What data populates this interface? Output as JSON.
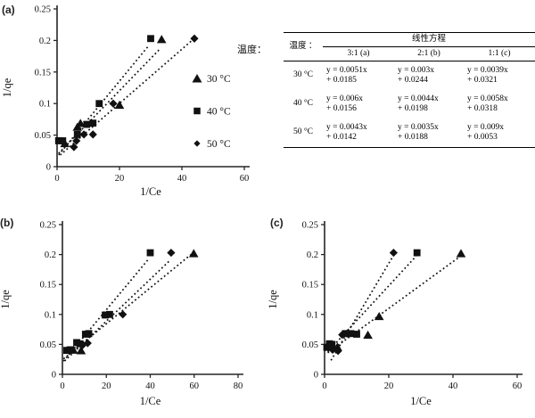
{
  "caption": {
    "label": "温度："
  },
  "table": {
    "row_header": "温度 ：",
    "span_header": "线性方程",
    "col_headers": [
      "3:1 (a)",
      "2:1 (b)",
      "1:1 (c)"
    ],
    "rows": [
      {
        "temp": "30 °C",
        "eq_a": "y = 0.0051x\n+ 0.0185",
        "eq_b": "y = 0.003x\n+ 0.0244",
        "eq_c": "y = 0.0039x\n+ 0.0321"
      },
      {
        "temp": "40 °C",
        "eq_a": "y = 0.006x\n+ 0.0156",
        "eq_b": "y = 0.0044x\n+ 0.0198",
        "eq_c": "y = 0.0058x\n+ 0.0318"
      },
      {
        "temp": "50 °C",
        "eq_a": "y = 0.0043x\n+ 0.0142",
        "eq_b": "y = 0.0035x\n+ 0.0188",
        "eq_c": "y = 0.009x\n+ 0.0053"
      }
    ]
  },
  "chart_data": [
    {
      "id": "a",
      "panel_label": "(a)",
      "type": "scatter",
      "title": "",
      "xlabel": "1/Ce",
      "ylabel": "1/qe",
      "xlim": [
        0,
        60
      ],
      "ylim": [
        0,
        0.25
      ],
      "xticks": [
        0,
        20,
        40,
        60
      ],
      "xtick_labels": [
        "0",
        "20",
        "40",
        "60"
      ],
      "yticks": [
        0,
        0.05,
        0.1,
        0.15,
        0.2,
        0.25
      ],
      "ytick_labels": [
        "0",
        "0.05",
        "0.1",
        "0.15",
        "0.2",
        "0.25"
      ],
      "grid": false,
      "legend": true,
      "legend_position": "inside-right",
      "marker_color": "#111111",
      "series": [
        {
          "name": "30 °C",
          "marker": "triangle",
          "points": [
            [
              2.5,
              0.037
            ],
            [
              6.5,
              0.063
            ],
            [
              7.5,
              0.069
            ],
            [
              20,
              0.098
            ],
            [
              33.5,
              0.202
            ]
          ],
          "trendline": {
            "slope": 0.0051,
            "intercept": 0.0185,
            "x_range": [
              0.5,
              33
            ],
            "style": "dotted"
          }
        },
        {
          "name": "40 °C",
          "marker": "square",
          "points": [
            [
              0.5,
              0.041
            ],
            [
              1.8,
              0.041
            ],
            [
              6.5,
              0.051
            ],
            [
              9.5,
              0.067
            ],
            [
              11.5,
              0.069
            ],
            [
              13.5,
              0.1
            ],
            [
              30,
              0.203
            ]
          ],
          "trendline": {
            "slope": 0.006,
            "intercept": 0.0156,
            "x_range": [
              0.5,
              29.5
            ],
            "style": "dotted"
          }
        },
        {
          "name": "50 °C",
          "marker": "diamond",
          "points": [
            [
              5.4,
              0.031
            ],
            [
              6.2,
              0.041
            ],
            [
              8.6,
              0.051
            ],
            [
              11.5,
              0.051
            ],
            [
              18,
              0.1
            ],
            [
              44,
              0.203
            ]
          ],
          "trendline": {
            "slope": 0.0043,
            "intercept": 0.0142,
            "x_range": [
              1,
              43.5
            ],
            "style": "dotted"
          }
        }
      ]
    },
    {
      "id": "b",
      "panel_label": "(b)",
      "type": "scatter",
      "title": "",
      "xlabel": "1/Ce",
      "ylabel": "1/qe",
      "xlim": [
        0,
        80
      ],
      "ylim": [
        0,
        0.25
      ],
      "xticks": [
        0,
        20,
        40,
        60,
        80
      ],
      "xtick_labels": [
        "0",
        "20",
        "40",
        "60",
        "80"
      ],
      "yticks": [
        0,
        0.05,
        0.1,
        0.15,
        0.2,
        0.25
      ],
      "ytick_labels": [
        "0",
        "0.05",
        "0.1",
        "0.15",
        "0.2",
        "0.25"
      ],
      "grid": false,
      "legend": false,
      "marker_color": "#111111",
      "series": [
        {
          "name": "30 °C",
          "marker": "triangle",
          "points": [
            [
              5,
              0.041
            ],
            [
              8.5,
              0.04
            ],
            [
              59.8,
              0.202
            ]
          ],
          "trendline": {
            "slope": 0.003,
            "intercept": 0.0244,
            "x_range": [
              0.5,
              58.5
            ],
            "style": "dotted"
          }
        },
        {
          "name": "40 °C",
          "marker": "square",
          "points": [
            [
              2,
              0.04
            ],
            [
              3.5,
              0.041
            ],
            [
              6.5,
              0.053
            ],
            [
              8,
              0.051
            ],
            [
              10.5,
              0.067
            ],
            [
              12,
              0.068
            ],
            [
              19.5,
              0.099
            ],
            [
              21.5,
              0.1
            ],
            [
              40,
              0.203
            ]
          ],
          "trendline": {
            "slope": 0.0044,
            "intercept": 0.0198,
            "x_range": [
              0.5,
              39.5
            ],
            "style": "dotted"
          }
        },
        {
          "name": "50 °C",
          "marker": "diamond",
          "points": [
            [
              9,
              0.048
            ],
            [
              11.5,
              0.052
            ],
            [
              27.5,
              0.1
            ],
            [
              49.5,
              0.203
            ]
          ],
          "trendline": {
            "slope": 0.0035,
            "intercept": 0.0188,
            "x_range": [
              1,
              48.5
            ],
            "style": "dotted"
          }
        }
      ]
    },
    {
      "id": "c",
      "panel_label": "(c)",
      "type": "scatter",
      "title": "",
      "xlabel": "1/Ce",
      "ylabel": "1/qe",
      "xlim": [
        0,
        60
      ],
      "ylim": [
        0,
        0.25
      ],
      "xticks": [
        0,
        20,
        40,
        60
      ],
      "xtick_labels": [
        "0",
        "20",
        "40",
        "60"
      ],
      "yticks": [
        0,
        0.05,
        0.1,
        0.15,
        0.2,
        0.25
      ],
      "ytick_labels": [
        "0",
        "0.05",
        "0.1",
        "0.15",
        "0.2",
        "0.25"
      ],
      "grid": false,
      "legend": false,
      "marker_color": "#111111",
      "series": [
        {
          "name": "30 °C",
          "marker": "triangle",
          "points": [
            [
              4,
              0.046
            ],
            [
              13.5,
              0.066
            ],
            [
              17,
              0.097
            ],
            [
              42.5,
              0.202
            ]
          ],
          "trendline": {
            "slope": 0.0039,
            "intercept": 0.0321,
            "x_range": [
              1,
              42
            ],
            "style": "dotted"
          }
        },
        {
          "name": "40 °C",
          "marker": "square",
          "points": [
            [
              0.7,
              0.045
            ],
            [
              1.5,
              0.051
            ],
            [
              2.3,
              0.05
            ],
            [
              6.5,
              0.068
            ],
            [
              8.2,
              0.068
            ],
            [
              10,
              0.067
            ],
            [
              28.8,
              0.203
            ]
          ],
          "trendline": {
            "slope": 0.0058,
            "intercept": 0.0318,
            "x_range": [
              1,
              28.5
            ],
            "style": "dotted"
          }
        },
        {
          "name": "50 °C",
          "marker": "diamond",
          "points": [
            [
              1,
              0.048
            ],
            [
              2.5,
              0.041
            ],
            [
              4.2,
              0.039
            ],
            [
              5.5,
              0.066
            ],
            [
              7,
              0.068
            ],
            [
              21.5,
              0.203
            ]
          ],
          "trendline": {
            "slope": 0.009,
            "intercept": 0.0053,
            "x_range": [
              2,
              21.3
            ],
            "style": "dotted"
          }
        }
      ]
    }
  ]
}
